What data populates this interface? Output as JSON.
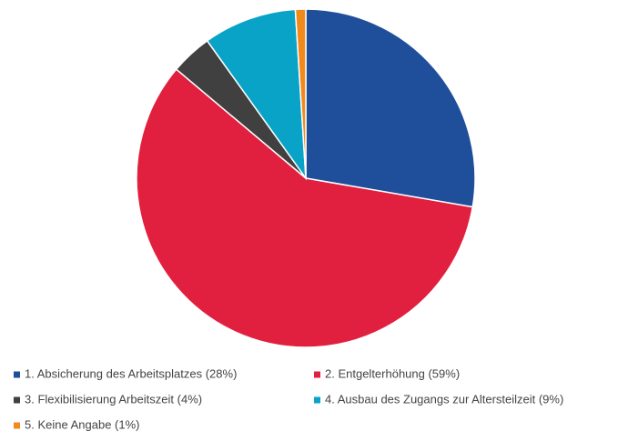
{
  "chart_data": {
    "type": "pie",
    "categories": [
      "1. Absicherung des Arbeitsplatzes (28%)",
      "2. Entgelterhöhung (59%)",
      "3. Flexibilisierung Arbeitszeit (4%)",
      "4. Ausbau des Zugangs zur Altersteilzeit (9%)",
      "5. Keine Angabe (1%)"
    ],
    "values": [
      28,
      59,
      4,
      9,
      1
    ],
    "colors": [
      "#1f4e9b",
      "#e1203f",
      "#404040",
      "#08a3c7",
      "#f08a1d"
    ],
    "legend": "bottom"
  }
}
